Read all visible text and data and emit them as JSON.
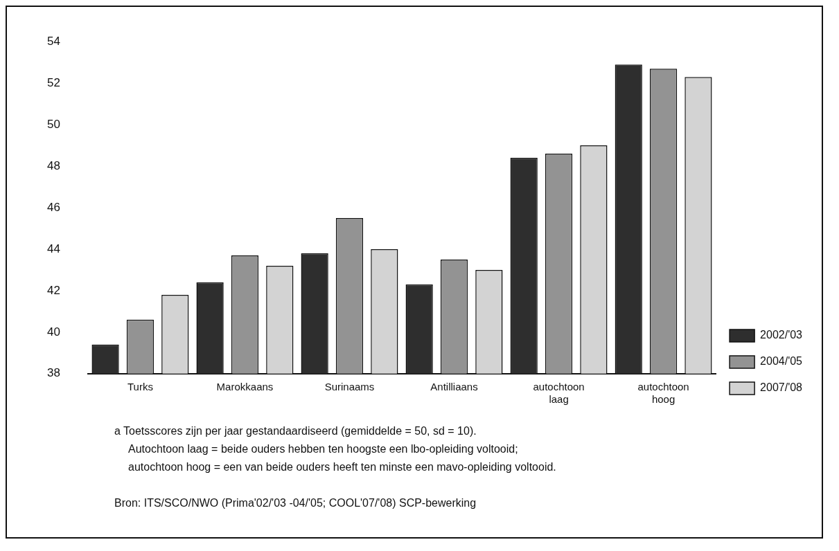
{
  "chart_data": {
    "type": "bar",
    "categories": [
      "Turks",
      "Marokkaans",
      "Surinaams",
      "Antilliaans",
      "autochtoon laag",
      "autochtoon hoog"
    ],
    "series": [
      {
        "name": "2002/'03",
        "color": "#2e2e2e",
        "values": [
          39.4,
          42.4,
          43.8,
          42.3,
          48.4,
          52.9
        ]
      },
      {
        "name": "2004/'05",
        "color": "#939393",
        "values": [
          40.6,
          43.7,
          45.5,
          43.5,
          48.6,
          52.7
        ]
      },
      {
        "name": "2007/'08",
        "color": "#d3d3d3",
        "values": [
          41.8,
          43.2,
          44.0,
          43.0,
          49.0,
          52.3
        ]
      }
    ],
    "ylim": [
      38,
      54
    ],
    "yticks": [
      38,
      40,
      42,
      44,
      46,
      48,
      50,
      52,
      54
    ],
    "grid": false,
    "legend": "right",
    "annotations": [
      "a  Toetsscores zijn per jaar gestandaardiseerd (gemiddelde = 50, sd = 10).",
      "Autochtoon laag = beide ouders hebben ten hoogste een lbo-opleiding voltooid;",
      "autochtoon hoog = een van beide ouders heeft ten minste een mavo-opleiding voltooid.",
      "Bron: ITS/SCO/NWO (Prima'02/'03 -04/'05; COOL'07/'08) SCP-bewerking"
    ]
  }
}
